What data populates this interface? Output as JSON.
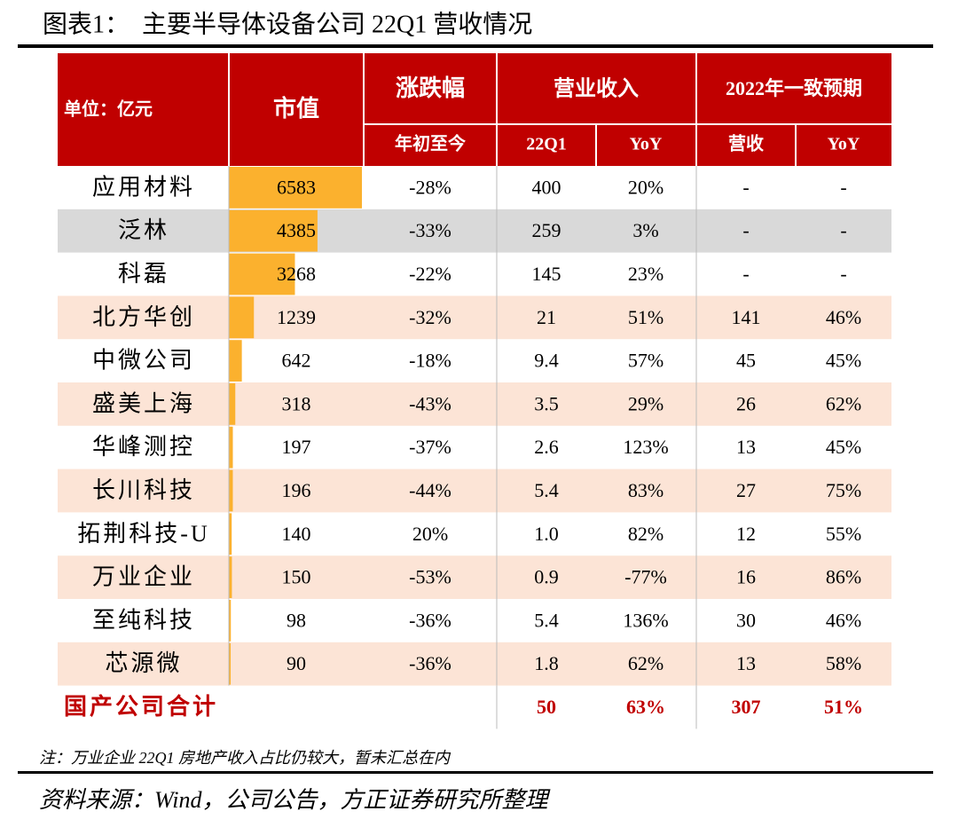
{
  "title": "图表1：　主要半导体设备公司 22Q1 营收情况",
  "table": {
    "header": {
      "label": "单位：亿元",
      "market_cap": "市值",
      "change": "涨跌幅",
      "change_sub": "年初至今",
      "revenue": "营业收入",
      "revenue_q": "22Q1",
      "revenue_yoy": "YoY",
      "consensus": "2022年一致预期",
      "consensus_rev": "营收",
      "consensus_yoy": "YoY"
    },
    "rows": [
      [
        "应用材料",
        6583,
        "-28%",
        "400",
        "20%",
        "-",
        "-"
      ],
      [
        "泛林",
        4385,
        "-33%",
        "259",
        "3%",
        "-",
        "-"
      ],
      [
        "科磊",
        3268,
        "-22%",
        "145",
        "23%",
        "-",
        "-"
      ],
      [
        "北方华创",
        1239,
        "-32%",
        "21",
        "51%",
        "141",
        "46%"
      ],
      [
        "中微公司",
        642,
        "-18%",
        "9.4",
        "57%",
        "45",
        "45%"
      ],
      [
        "盛美上海",
        318,
        "-43%",
        "3.5",
        "29%",
        "26",
        "62%"
      ],
      [
        "华峰测控",
        197,
        "-37%",
        "2.6",
        "123%",
        "13",
        "45%"
      ],
      [
        "长川科技",
        196,
        "-44%",
        "5.4",
        "83%",
        "27",
        "75%"
      ],
      [
        "拓荆科技-U",
        140,
        "20%",
        "1.0",
        "82%",
        "12",
        "55%"
      ],
      [
        "万业企业",
        150,
        "-53%",
        "0.9",
        "-77%",
        "16",
        "86%"
      ],
      [
        "至纯科技",
        98,
        "-36%",
        "5.4",
        "136%",
        "30",
        "46%"
      ],
      [
        "芯源微",
        90,
        "-36%",
        "1.8",
        "62%",
        "13",
        "58%"
      ]
    ],
    "total": [
      "国产公司合计",
      "50",
      "63%",
      "307",
      "51%"
    ]
  },
  "note": "注：万业企业 22Q1 房地产收入占比仍较大，暂未汇总在内",
  "source": "资料来源：Wind，公司公告，方正证券研究所整理"
}
